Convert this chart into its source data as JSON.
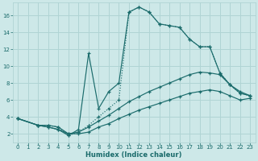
{
  "xlabel": "Humidex (Indice chaleur)",
  "ylabel": "",
  "bg_color": "#cde8e8",
  "line_color": "#1a6b6b",
  "grid_color": "#b0d4d4",
  "xlim": [
    -0.5,
    23.5
  ],
  "ylim": [
    1,
    17.5
  ],
  "xticks": [
    0,
    1,
    2,
    3,
    4,
    5,
    6,
    7,
    8,
    9,
    10,
    11,
    12,
    13,
    14,
    15,
    16,
    17,
    18,
    19,
    20,
    21,
    22,
    23
  ],
  "yticks": [
    2,
    4,
    6,
    8,
    10,
    12,
    14,
    16
  ],
  "lines": [
    {
      "x": [
        0,
        2,
        3,
        4,
        5,
        6,
        7,
        8,
        9,
        10,
        11,
        12,
        13,
        14,
        15,
        16,
        17,
        18,
        19,
        20,
        21,
        22,
        23
      ],
      "y": [
        3.8,
        3.0,
        3.0,
        2.8,
        1.8,
        2.2,
        3.0,
        4.0,
        5.0,
        6.0,
        16.4,
        17.0,
        16.4,
        15.0,
        14.8,
        14.6,
        13.2,
        12.3,
        12.3,
        9.2,
        7.8,
        6.8,
        6.5
      ],
      "style": ":"
    },
    {
      "x": [
        0,
        2,
        3,
        4,
        5,
        6,
        7,
        8,
        9,
        10,
        11,
        12,
        13,
        14,
        15,
        16,
        17,
        18,
        19,
        20,
        21,
        22,
        23
      ],
      "y": [
        3.8,
        3.0,
        2.8,
        2.5,
        1.8,
        2.5,
        11.5,
        5.0,
        7.0,
        8.0,
        16.4,
        17.0,
        16.4,
        15.0,
        14.8,
        14.6,
        13.2,
        12.3,
        12.3,
        9.2,
        7.8,
        6.8,
        6.5
      ],
      "style": "-"
    },
    {
      "x": [
        0,
        2,
        3,
        4,
        5,
        6,
        7,
        8,
        9,
        10,
        11,
        12,
        13,
        14,
        15,
        16,
        17,
        18,
        19,
        20,
        21,
        22,
        23
      ],
      "y": [
        3.8,
        3.0,
        3.0,
        2.8,
        2.0,
        2.2,
        2.8,
        3.5,
        4.2,
        5.0,
        5.8,
        6.4,
        7.0,
        7.5,
        8.0,
        8.5,
        9.0,
        9.3,
        9.2,
        9.0,
        7.8,
        7.0,
        6.5
      ],
      "style": "-"
    },
    {
      "x": [
        0,
        2,
        3,
        4,
        5,
        6,
        7,
        8,
        9,
        10,
        11,
        12,
        13,
        14,
        15,
        16,
        17,
        18,
        19,
        20,
        21,
        22,
        23
      ],
      "y": [
        3.8,
        3.0,
        2.8,
        2.5,
        2.0,
        2.0,
        2.2,
        2.8,
        3.2,
        3.8,
        4.3,
        4.8,
        5.2,
        5.6,
        6.0,
        6.4,
        6.8,
        7.0,
        7.2,
        7.0,
        6.5,
        6.0,
        6.2
      ],
      "style": "-"
    }
  ]
}
